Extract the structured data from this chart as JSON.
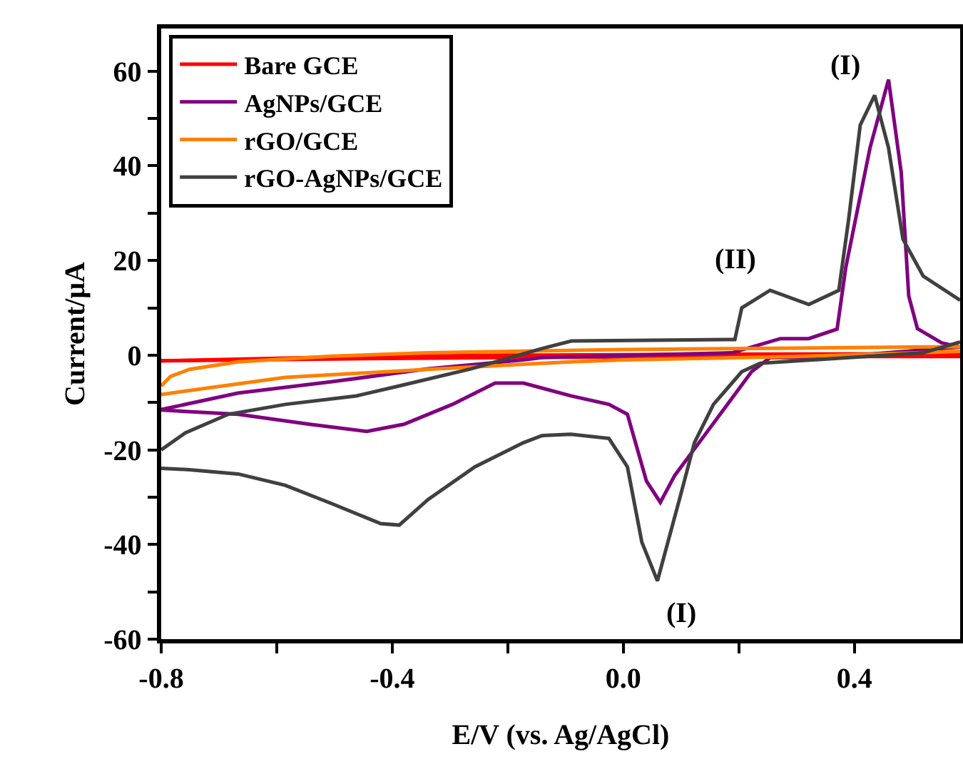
{
  "chart_data": {
    "type": "line",
    "xlabel": "E/V (vs. Ag/AgCl)",
    "ylabel": "Current/μA",
    "xlim": [
      -0.8,
      0.583
    ],
    "ylim": [
      -60,
      69
    ],
    "xticks": [
      {
        "value": -0.8,
        "label": "-0.8"
      },
      {
        "value": -0.6,
        "label": null
      },
      {
        "value": -0.4,
        "label": "-0.4"
      },
      {
        "value": -0.2,
        "label": null
      },
      {
        "value": 0,
        "label": "0.0"
      },
      {
        "value": 0.2,
        "label": null
      },
      {
        "value": 0.4,
        "label": "0.4"
      }
    ],
    "yticks": [
      -60,
      {
        "value": -50,
        "label": null
      },
      -40,
      {
        "value": -30,
        "label": null
      },
      -20,
      {
        "value": -10,
        "label": null
      },
      0,
      {
        "value": 10,
        "label": null
      },
      20,
      {
        "value": 30,
        "label": null
      },
      40,
      {
        "value": 50,
        "label": null
      },
      60
    ],
    "legend": "top left",
    "grid": false,
    "line_style": "solid",
    "marker": "none",
    "series": [
      {
        "name": "Bare GCE",
        "color": "#ff0000",
        "x": [
          -0.8,
          -0.5,
          -0.2,
          0.2,
          0.583
        ],
        "values": [
          -1.2,
          -0.4,
          0,
          0.2,
          0.3
        ]
      },
      {
        "color": "#ff0000",
        "x": [
          -0.8,
          -0.5,
          -0.2,
          0.2,
          0.583
        ],
        "values": [
          -1.2,
          -0.8,
          -0.5,
          -0.3,
          -0.3
        ]
      },
      {
        "name": "AgNPs/GCE",
        "color": "#800080",
        "x": [
          -0.8,
          -0.667,
          -0.504,
          -0.338,
          -0.173,
          -0.141,
          0.188,
          0.272,
          0.321,
          0.37,
          0.385,
          0.427,
          0.459,
          0.481,
          0.494,
          0.509,
          0.551,
          0.583
        ],
        "values": [
          -11.5,
          -8,
          -5.6,
          -2.9,
          -1,
          -0.5,
          0.5,
          3.5,
          3.5,
          5.5,
          18.5,
          43.8,
          58.2,
          38.6,
          12.5,
          5.6,
          2.6,
          1.7
        ]
      },
      {
        "color": "#800080",
        "x": [
          -0.8,
          -0.667,
          -0.543,
          -0.444,
          -0.38,
          -0.296,
          -0.222,
          -0.173,
          -0.091,
          -0.025,
          0.007,
          0.04,
          0.064,
          0.089,
          0.131,
          0.173,
          0.222,
          0.254,
          0.353,
          0.583
        ],
        "values": [
          -11.6,
          -12.5,
          -14.6,
          -16.1,
          -14.6,
          -10.4,
          -5.9,
          -5.9,
          -8.6,
          -10.4,
          -12.5,
          -26.6,
          -31.1,
          -25.4,
          -18.5,
          -11.6,
          -3.5,
          -0.5,
          -0.5,
          1.7
        ]
      },
      {
        "name": "rGO/GCE",
        "color": "#ff8000",
        "x": [
          -0.8,
          -0.784,
          -0.751,
          -0.667,
          -0.504,
          -0.338,
          0,
          0.3,
          0.583
        ],
        "values": [
          -6.5,
          -4.5,
          -3,
          -1.4,
          -0.2,
          0.5,
          1.2,
          1.5,
          1.8
        ]
      },
      {
        "color": "#ff8000",
        "x": [
          -0.8,
          -0.585,
          -0.338,
          -0.091,
          0,
          0.3,
          0.583
        ],
        "values": [
          -8.3,
          -4.7,
          -3,
          -1.4,
          -1,
          -0.3,
          0.8
        ]
      },
      {
        "name": "rGO-AgNPs/GCE",
        "color": "#404040",
        "x": [
          -0.8,
          -0.758,
          -0.684,
          -0.585,
          -0.462,
          -0.388,
          -0.264,
          -0.141,
          -0.09,
          0.193,
          0.205,
          0.254,
          0.321,
          0.373,
          0.39,
          0.41,
          0.435,
          0.459,
          0.484,
          0.519,
          0.583
        ],
        "values": [
          -20,
          -16.4,
          -12.5,
          -10.4,
          -8.6,
          -6.5,
          -2.9,
          1.4,
          3,
          3.3,
          10,
          13.7,
          10.7,
          13.7,
          28.7,
          48.6,
          54.9,
          43.8,
          24.5,
          16.7,
          11.6
        ]
      },
      {
        "color": "#404040",
        "x": [
          -0.8,
          -0.751,
          -0.667,
          -0.585,
          -0.504,
          -0.42,
          -0.388,
          -0.338,
          -0.257,
          -0.173,
          -0.141,
          -0.091,
          -0.025,
          0.007,
          0.032,
          0.059,
          0.099,
          0.123,
          0.156,
          0.205,
          0.237,
          0.353,
          0.519,
          0.583
        ],
        "values": [
          -23.9,
          -24.2,
          -25.1,
          -27.5,
          -31.4,
          -35.6,
          -35.9,
          -30.5,
          -23.6,
          -18.5,
          -17,
          -16.7,
          -17.6,
          -23.6,
          -39.5,
          -47.7,
          -29.6,
          -18.5,
          -10.4,
          -3.5,
          -1.7,
          -0.8,
          0.5,
          2.8
        ]
      }
    ],
    "annotations": [
      {
        "text": "(I)",
        "x": 0.435,
        "y": 54.9
      },
      {
        "text": "(II)",
        "x": 0.254,
        "y": 13.7
      },
      {
        "text": "(I)",
        "x": 0.059,
        "y": -47.7
      }
    ]
  }
}
